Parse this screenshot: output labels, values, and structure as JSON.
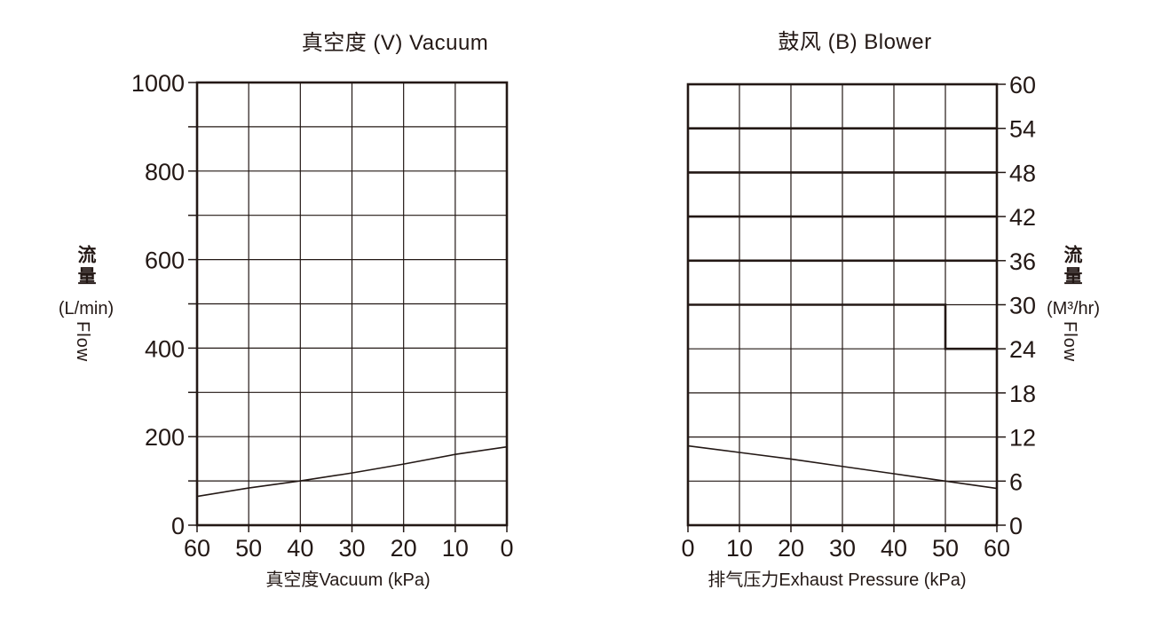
{
  "page": {
    "background": "#ffffff",
    "ink": "#231815"
  },
  "chart_data": [
    {
      "id": "vacuum",
      "type": "line",
      "title": "真空度 (V) Vacuum",
      "xlabel": "真空度Vacuum (kPa)",
      "ylabel_cn": "流量",
      "ylabel_unit": "(L/min)",
      "ylabel_en": "Flow",
      "xlim": [
        60,
        0
      ],
      "ylim": [
        0,
        1000
      ],
      "x_grid_step": 10,
      "y_grid_step": 100,
      "x_ticks": [
        60,
        50,
        40,
        30,
        20,
        10,
        0
      ],
      "y_ticks": [
        1000,
        800,
        600,
        400,
        200,
        0
      ],
      "grid": true,
      "legend": "none",
      "x": [
        60,
        50,
        40,
        30,
        20,
        10,
        0
      ],
      "values": [
        65,
        84,
        100,
        118,
        138,
        160,
        177
      ]
    },
    {
      "id": "blower",
      "type": "line",
      "title": "鼓风 (B) Blower",
      "xlabel": "排气压力Exhaust Pressure (kPa)",
      "ylabel_cn": "流量",
      "ylabel_unit": "(M³/hr)",
      "ylabel_en": "Flow",
      "xlim": [
        0,
        60
      ],
      "ylim": [
        0,
        60
      ],
      "x_grid_step": 10,
      "y_grid_step": 6,
      "x_ticks": [
        0,
        10,
        20,
        30,
        40,
        50,
        60
      ],
      "y_ticks": [
        60,
        54,
        48,
        42,
        36,
        30,
        24,
        18,
        12,
        6,
        0
      ],
      "grid": true,
      "legend": "none",
      "bold_gridlines_y": [
        54,
        48,
        42,
        36
      ],
      "envelope_step": [
        [
          0,
          30
        ],
        [
          50,
          30
        ],
        [
          50,
          24
        ],
        [
          60,
          24
        ]
      ],
      "x": [
        0,
        10,
        20,
        30,
        40,
        50,
        60
      ],
      "values": [
        10.8,
        9.9,
        9.0,
        8.0,
        7.0,
        6.0,
        5.0
      ]
    }
  ]
}
